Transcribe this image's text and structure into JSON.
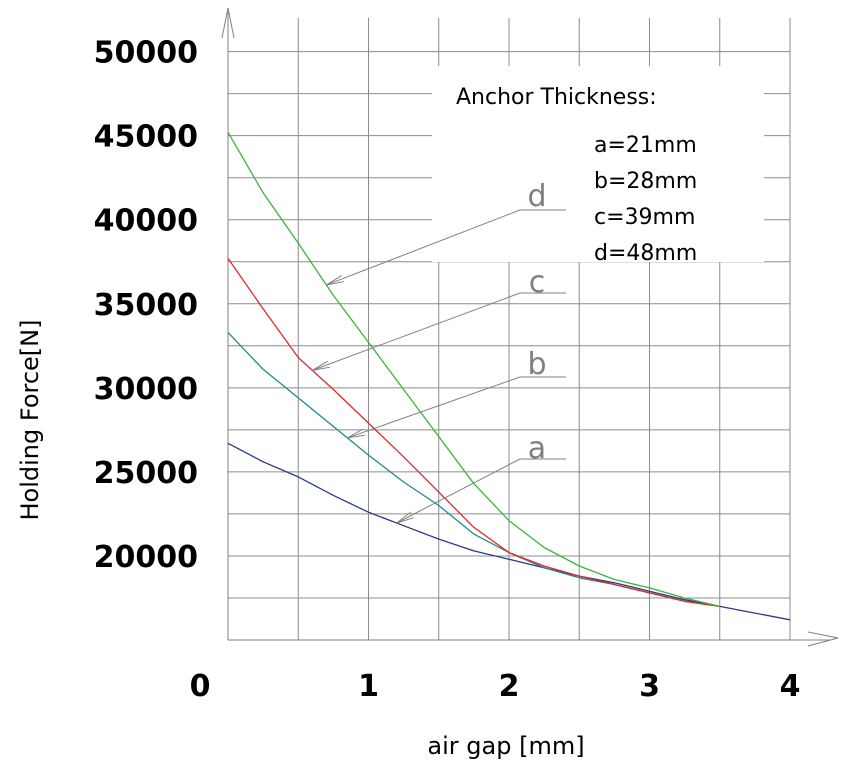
{
  "chart_data": {
    "type": "line",
    "title": "",
    "xlabel": "air gap [mm]",
    "ylabel": "Holding Force[N]",
    "xlim": [
      0,
      4
    ],
    "ylim": [
      15000,
      52000
    ],
    "xticks": [
      "0",
      "1",
      "2",
      "3",
      "4"
    ],
    "yticks": [
      "20000",
      "25000",
      "30000",
      "35000",
      "40000",
      "45000",
      "50000"
    ],
    "grid": true,
    "legend": {
      "title": "Anchor Thickness:",
      "entries": [
        "a=21mm",
        "b=28mm",
        "c=39mm",
        "d=48mm"
      ],
      "placement": "top-right"
    },
    "series": [
      {
        "name": "a",
        "color": "#2a3a8a",
        "x": [
          0,
          0.25,
          0.5,
          0.75,
          1.0,
          1.25,
          1.5,
          1.75,
          2.0,
          2.25,
          2.5,
          2.75,
          3.0,
          3.25,
          3.5,
          3.75,
          4.0
        ],
        "y": [
          26700,
          25600,
          24700,
          23600,
          22600,
          21800,
          21000,
          20300,
          19800,
          19300,
          18800,
          18400,
          17900,
          17400,
          17000,
          16600,
          16200
        ]
      },
      {
        "name": "b",
        "color": "#1f8a8a",
        "x": [
          0,
          0.25,
          0.5,
          0.75,
          1.0,
          1.25,
          1.5,
          1.75,
          2.0,
          2.25,
          2.5,
          2.75,
          3.0,
          3.25,
          3.5
        ],
        "y": [
          33300,
          31100,
          29400,
          27700,
          26000,
          24400,
          23000,
          21300,
          20200,
          19300,
          18700,
          18300,
          17800,
          17300,
          17000
        ]
      },
      {
        "name": "c",
        "color": "#e02a2a",
        "x": [
          0,
          0.25,
          0.5,
          0.75,
          1.0,
          1.25,
          1.5,
          1.75,
          2.0,
          2.25,
          2.5,
          2.75,
          3.0,
          3.25,
          3.5
        ],
        "y": [
          37700,
          34700,
          31800,
          29900,
          27900,
          25900,
          23800,
          21700,
          20200,
          19400,
          18800,
          18300,
          17800,
          17300,
          17000
        ]
      },
      {
        "name": "d",
        "color": "#3cb43c",
        "x": [
          0,
          0.25,
          0.5,
          0.75,
          1.0,
          1.25,
          1.5,
          1.75,
          2.0,
          2.25,
          2.5,
          2.75,
          3.0,
          3.25,
          3.5
        ],
        "y": [
          45200,
          41600,
          38600,
          35500,
          32700,
          29900,
          27100,
          24300,
          22100,
          20500,
          19400,
          18600,
          18100,
          17500,
          17000
        ]
      }
    ],
    "curve_labels": [
      {
        "text": "a",
        "series": "a",
        "arrow_to_x": 1.2
      },
      {
        "text": "b",
        "series": "b",
        "arrow_to_x": 0.85
      },
      {
        "text": "c",
        "series": "c",
        "arrow_to_x": 0.6
      },
      {
        "text": "d",
        "series": "d",
        "arrow_to_x": 0.7
      }
    ]
  }
}
